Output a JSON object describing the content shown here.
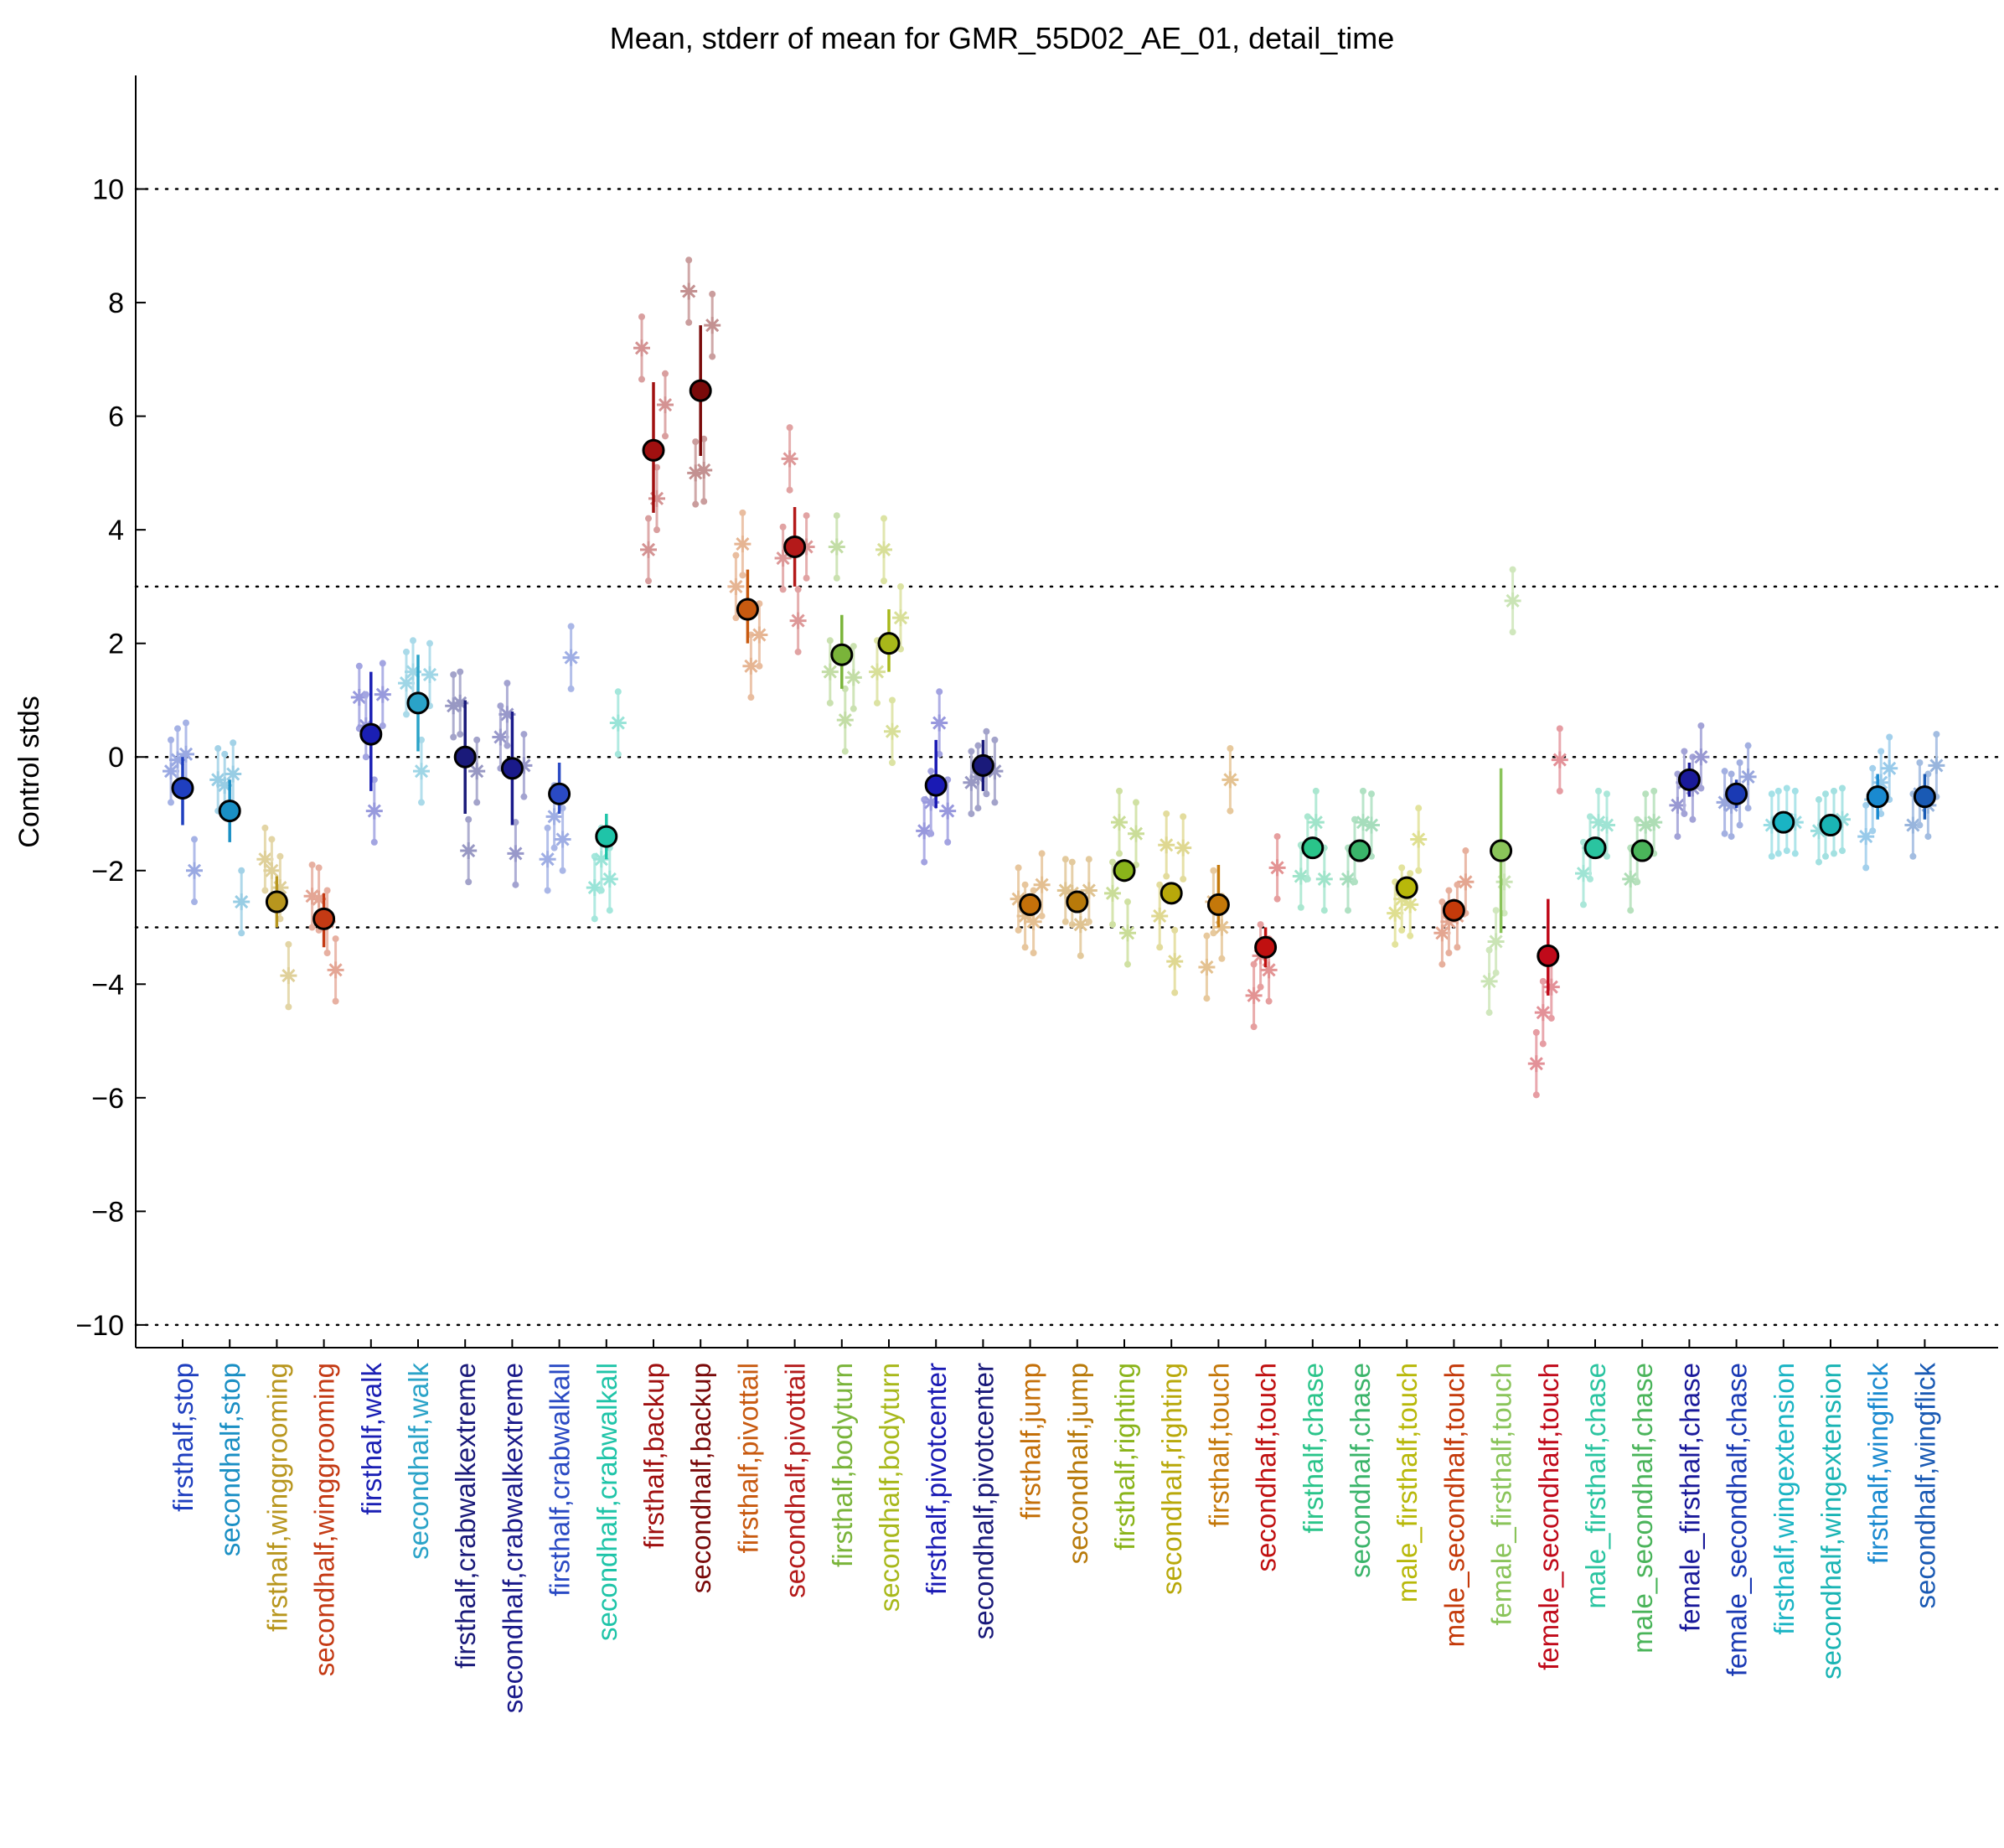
{
  "chart_data": {
    "type": "scatter",
    "title": "Mean, stderr of mean for GMR_55D02_AE_01, detail_time",
    "xlabel": "",
    "ylabel": "Control stds",
    "ylim": [
      -10.4,
      12
    ],
    "yticks": [
      -10,
      -8,
      -6,
      -4,
      -2,
      0,
      2,
      4,
      6,
      8,
      10
    ],
    "reference_lines": [
      -10,
      -3,
      0,
      3,
      10
    ],
    "grid": false,
    "legend": "none",
    "categories": [
      "firsthalf,stop",
      "secondhalf,stop",
      "firsthalf,winggrooming",
      "secondhalf,winggrooming",
      "firsthalf,walk",
      "secondhalf,walk",
      "firsthalf,crabwalkextreme",
      "secondhalf,crabwalkextreme",
      "firsthalf,crabwalkall",
      "secondhalf,crabwalkall",
      "firsthalf,backup",
      "secondhalf,backup",
      "firsthalf,pivottail",
      "secondhalf,pivottail",
      "firsthalf,bodyturn",
      "secondhalf,bodyturn",
      "firsthalf,pivotcenter",
      "secondhalf,pivotcenter",
      "firsthalf,jump",
      "secondhalf,jump",
      "firsthalf,righting",
      "secondhalf,righting",
      "firsthalf,touch",
      "secondhalf,touch",
      "firsthalf,chase",
      "secondhalf,chase",
      "male_firsthalf,touch",
      "male_secondhalf,touch",
      "female_firsthalf,touch",
      "female_secondhalf,touch",
      "male_firsthalf,chase",
      "male_secondhalf,chase",
      "female_firsthalf,chase",
      "female_secondhalf,chase",
      "firsthalf,wingextension",
      "secondhalf,wingextension",
      "firsthalf,wingflick",
      "secondhalf,wingflick"
    ],
    "colors": [
      "#1f3fbf",
      "#1a8fc4",
      "#b8961e",
      "#c43a14",
      "#1a1fb4",
      "#2aa3c8",
      "#1a1a7a",
      "#1a1a8a",
      "#2a4ac4",
      "#1fc4a8",
      "#a01010",
      "#7a0a0a",
      "#c85a10",
      "#b41a1a",
      "#7ab43a",
      "#a8b81a",
      "#1a1ab4",
      "#1a1a7a",
      "#c4700a",
      "#b87a0a",
      "#8ab41a",
      "#b8a80a",
      "#c4780a",
      "#c01010",
      "#2ac48a",
      "#3ab46a",
      "#b8b80a",
      "#c43a0a",
      "#8ac45a",
      "#c00a1a",
      "#2ac4a0",
      "#4ab45a",
      "#1a1a9a",
      "#1a3ab4",
      "#1ab4c4",
      "#1ab4b4",
      "#1a8ad0",
      "#1a5ab4"
    ],
    "series": [
      {
        "name": "mean",
        "values": [
          -0.55,
          -0.95,
          -2.55,
          -2.85,
          0.4,
          0.95,
          0.0,
          -0.2,
          -0.65,
          -1.4,
          5.4,
          6.45,
          2.6,
          3.7,
          1.8,
          2.0,
          -0.5,
          -0.15,
          -2.6,
          -2.55,
          -2.0,
          -2.4,
          -2.6,
          -3.35,
          -1.6,
          -1.65,
          -2.3,
          -2.7,
          -1.65,
          -3.5,
          -1.6,
          -1.65,
          -0.4,
          -0.65,
          -1.15,
          -1.2,
          -0.7,
          -0.7
        ],
        "err_low": [
          -1.2,
          -1.5,
          -3.0,
          -3.35,
          -0.6,
          0.1,
          -1.0,
          -1.2,
          -1.0,
          -1.8,
          4.3,
          5.3,
          2.0,
          3.0,
          1.2,
          1.5,
          -0.9,
          -0.6,
          -2.8,
          -2.7,
          -2.2,
          -2.5,
          -3.0,
          -3.7,
          -1.75,
          -1.8,
          -2.5,
          -2.9,
          -3.1,
          -4.2,
          -1.75,
          -1.8,
          -0.7,
          -0.9,
          -1.25,
          -1.3,
          -1.1,
          -1.1
        ],
        "err_high": [
          0.0,
          -0.4,
          -2.1,
          -2.4,
          1.5,
          1.8,
          1.0,
          0.8,
          -0.1,
          -1.0,
          6.6,
          7.6,
          3.3,
          4.4,
          2.5,
          2.6,
          0.3,
          0.3,
          -2.4,
          -2.4,
          -1.8,
          -2.3,
          -1.9,
          -3.0,
          -1.45,
          -1.5,
          -2.1,
          -2.5,
          -0.2,
          -2.5,
          -1.45,
          -1.5,
          -0.1,
          -0.4,
          -1.05,
          -1.1,
          -0.3,
          -0.3
        ]
      },
      {
        "name": "individual",
        "values": [
          [
            -0.25,
            -0.05,
            0.05,
            -2.0
          ],
          [
            -0.4,
            -0.5,
            -0.3,
            -2.55
          ],
          [
            -1.8,
            -2.0,
            -2.3,
            -3.85
          ],
          [
            -2.45,
            -2.5,
            -2.9,
            -3.75
          ],
          [
            1.05,
            0.55,
            -0.95,
            1.1
          ],
          [
            1.3,
            1.5,
            -0.25,
            1.45
          ],
          [
            0.9,
            0.95,
            -1.65,
            -0.25
          ],
          [
            0.35,
            0.75,
            -1.7,
            -0.15
          ],
          [
            -1.8,
            -1.05,
            -1.45,
            1.75
          ],
          [
            -2.3,
            -1.8,
            -2.15,
            0.6
          ],
          [
            7.2,
            3.65,
            4.55,
            6.2
          ],
          [
            8.2,
            5.0,
            5.05,
            7.6
          ],
          [
            3.0,
            3.75,
            1.6,
            2.15
          ],
          [
            3.5,
            5.25,
            2.4,
            3.7
          ],
          [
            1.5,
            3.7,
            0.65,
            1.4
          ],
          [
            1.5,
            3.65,
            0.45,
            2.45
          ],
          [
            -1.3,
            -0.8,
            0.6,
            -0.95
          ],
          [
            -0.45,
            -0.35,
            -0.1,
            -0.25
          ],
          [
            -2.5,
            -2.8,
            -2.9,
            -2.25
          ],
          [
            -2.35,
            -2.4,
            -2.95,
            -2.35
          ],
          [
            -2.4,
            -1.15,
            -3.1,
            -1.35
          ],
          [
            -2.8,
            -1.55,
            -3.6,
            -1.6
          ],
          [
            -3.7,
            -2.55,
            -3.0,
            -0.4
          ],
          [
            -4.2,
            -3.5,
            -3.75,
            -1.95
          ],
          [
            -2.1,
            -1.6,
            -1.15,
            -2.15
          ],
          [
            -2.15,
            -1.65,
            -1.15,
            -1.2
          ],
          [
            -2.75,
            -2.5,
            -2.6,
            -1.45
          ],
          [
            -3.1,
            -2.9,
            -2.8,
            -2.2
          ],
          [
            -3.95,
            -3.25,
            -2.2,
            2.75
          ],
          [
            -5.4,
            -4.5,
            -4.05,
            -0.05
          ],
          [
            -2.05,
            -1.6,
            -1.15,
            -1.2
          ],
          [
            -2.15,
            -1.65,
            -1.2,
            -1.15
          ],
          [
            -0.85,
            -0.45,
            -0.55,
            0.0
          ],
          [
            -0.8,
            -0.85,
            -0.65,
            -0.35
          ],
          [
            -1.2,
            -1.15,
            -1.1,
            -1.15
          ],
          [
            -1.3,
            -1.2,
            -1.15,
            -1.1
          ],
          [
            -1.4,
            -0.75,
            -0.45,
            -0.2
          ],
          [
            -1.2,
            -0.65,
            -0.85,
            -0.15
          ]
        ]
      }
    ]
  }
}
